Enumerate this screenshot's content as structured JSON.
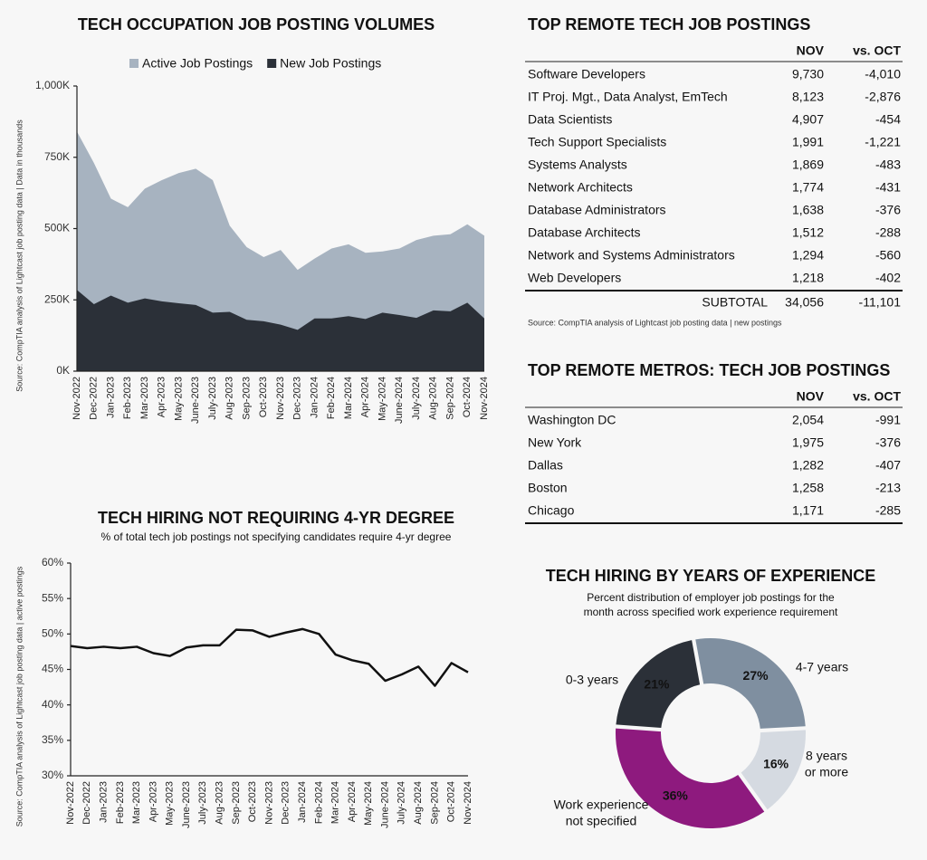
{
  "chart_data": [
    {
      "type": "area",
      "title": "TECH OCCUPATION JOB POSTING VOLUMES",
      "source": "Source: CompTIA analysis of Lightcast job posting data | Data in thousands",
      "categories": [
        "Nov-2022",
        "Dec-2022",
        "Jan-2023",
        "Feb-2023",
        "Mar-2023",
        "Apr-2023",
        "May-2023",
        "June-2023",
        "July-2023",
        "Aug-2023",
        "Sep-2023",
        "Oct-2023",
        "Nov-2023",
        "Dec-2023",
        "Jan-2024",
        "Feb-2024",
        "Mar-2024",
        "Apr-2024",
        "May-2024",
        "June-2024",
        "July-2024",
        "Aug-2024",
        "Sep-2024",
        "Oct-2024",
        "Nov-2024"
      ],
      "series": [
        {
          "name": "Active Job Postings",
          "color": "#a7b3c0",
          "values": [
            840,
            730,
            605,
            575,
            640,
            670,
            695,
            710,
            670,
            510,
            435,
            400,
            425,
            355,
            395,
            430,
            445,
            415,
            420,
            430,
            460,
            475,
            480,
            515,
            475
          ]
        },
        {
          "name": "New Job Postings",
          "color": "#2b3038",
          "values": [
            285,
            235,
            265,
            240,
            255,
            245,
            238,
            232,
            205,
            208,
            180,
            175,
            163,
            145,
            185,
            185,
            193,
            183,
            205,
            197,
            187,
            213,
            210,
            240,
            185
          ]
        }
      ],
      "ylim": [
        0,
        1000
      ],
      "yticks": [
        {
          "value": 0,
          "label": "0K"
        },
        {
          "value": 250,
          "label": "250K"
        },
        {
          "value": 500,
          "label": "500K"
        },
        {
          "value": 750,
          "label": "750K"
        },
        {
          "value": 1000,
          "label": "1,000K"
        }
      ],
      "grid": false
    },
    {
      "type": "line",
      "title": "TECH HIRING NOT REQUIRING 4-YR DEGREE",
      "subtitle": "% of total tech job postings not specifying candidates require 4-yr degree",
      "source": "Source: CompTIA analysis of Lightcast job posting data | active postings",
      "categories": [
        "Nov-2022",
        "Dec-2022",
        "Jan-2023",
        "Feb-2023",
        "Mar-2023",
        "Apr-2023",
        "May-2023",
        "June-2023",
        "July-2023",
        "Aug-2023",
        "Sep-2023",
        "Oct-2023",
        "Nov-2023",
        "Dec-2023",
        "Jan-2024",
        "Feb-2024",
        "Mar-2024",
        "Apr-2024",
        "May-2024",
        "June-2024",
        "July-2024",
        "Aug-2024",
        "Sep-2024",
        "Oct-2024",
        "Nov-2024"
      ],
      "series": [
        {
          "name": "% not requiring 4-yr degree",
          "color": "#111111",
          "values": [
            48.3,
            48.0,
            48.2,
            48.0,
            48.2,
            47.3,
            46.9,
            48.1,
            48.4,
            48.4,
            50.6,
            50.5,
            49.6,
            50.2,
            50.7,
            50.0,
            47.1,
            46.3,
            45.8,
            43.4,
            44.3,
            45.4,
            42.7,
            45.9,
            44.6
          ]
        }
      ],
      "ylim": [
        30,
        60
      ],
      "yticks": [
        {
          "value": 30,
          "label": "30%"
        },
        {
          "value": 35,
          "label": "35%"
        },
        {
          "value": 40,
          "label": "40%"
        },
        {
          "value": 45,
          "label": "45%"
        },
        {
          "value": 50,
          "label": "50%"
        },
        {
          "value": 55,
          "label": "55%"
        },
        {
          "value": 60,
          "label": "60%"
        }
      ],
      "grid": false
    },
    {
      "type": "donut",
      "title": "TECH HIRING BY YEARS OF EXPERIENCE",
      "subtitle": [
        "Percent distribution of employer job postings for the",
        "month across specified work experience requirement"
      ],
      "categories": [
        [
          "4-7 years"
        ],
        [
          "8 years",
          "or more"
        ],
        [
          "Work experience",
          "not specified"
        ],
        [
          "0-3 years"
        ]
      ],
      "values": [
        27,
        16,
        36,
        21
      ],
      "value_labels": [
        "27%",
        "16%",
        "36%",
        "21%"
      ],
      "colors": [
        "#7f8fa0",
        "#d5dae1",
        "#8e1a7e",
        "#2b3038"
      ]
    }
  ],
  "remote_jobs": {
    "title": "TOP REMOTE TECH JOB POSTINGS",
    "columns": [
      "NOV",
      "vs. OCT"
    ],
    "rows": [
      [
        "Software Developers",
        "9,730",
        "-4,010"
      ],
      [
        "IT Proj. Mgt., Data Analyst, EmTech",
        "8,123",
        "-2,876"
      ],
      [
        "Data Scientists",
        "4,907",
        "-454"
      ],
      [
        "Tech Support Specialists",
        "1,991",
        "-1,221"
      ],
      [
        "Systems Analysts",
        "1,869",
        "-483"
      ],
      [
        "Network Architects",
        "1,774",
        "-431"
      ],
      [
        "Database Administrators",
        "1,638",
        "-376"
      ],
      [
        "Database Architects",
        "1,512",
        "-288"
      ],
      [
        "Network and Systems Administrators",
        "1,294",
        "-560"
      ],
      [
        "Web Developers",
        "1,218",
        "-402"
      ]
    ],
    "subtotal": [
      "SUBTOTAL",
      "34,056",
      "-11,101"
    ],
    "source": "Source: CompTIA analysis of Lightcast job posting data | new postings"
  },
  "remote_metros": {
    "title": "TOP REMOTE METROS: TECH JOB POSTINGS",
    "columns": [
      "NOV",
      "vs. OCT"
    ],
    "rows": [
      [
        "Washington DC",
        "2,054",
        "-991"
      ],
      [
        "New York",
        "1,975",
        "-376"
      ],
      [
        "Dallas",
        "1,282",
        "-407"
      ],
      [
        "Boston",
        "1,258",
        "-213"
      ],
      [
        "Chicago",
        "1,171",
        "-285"
      ]
    ]
  }
}
